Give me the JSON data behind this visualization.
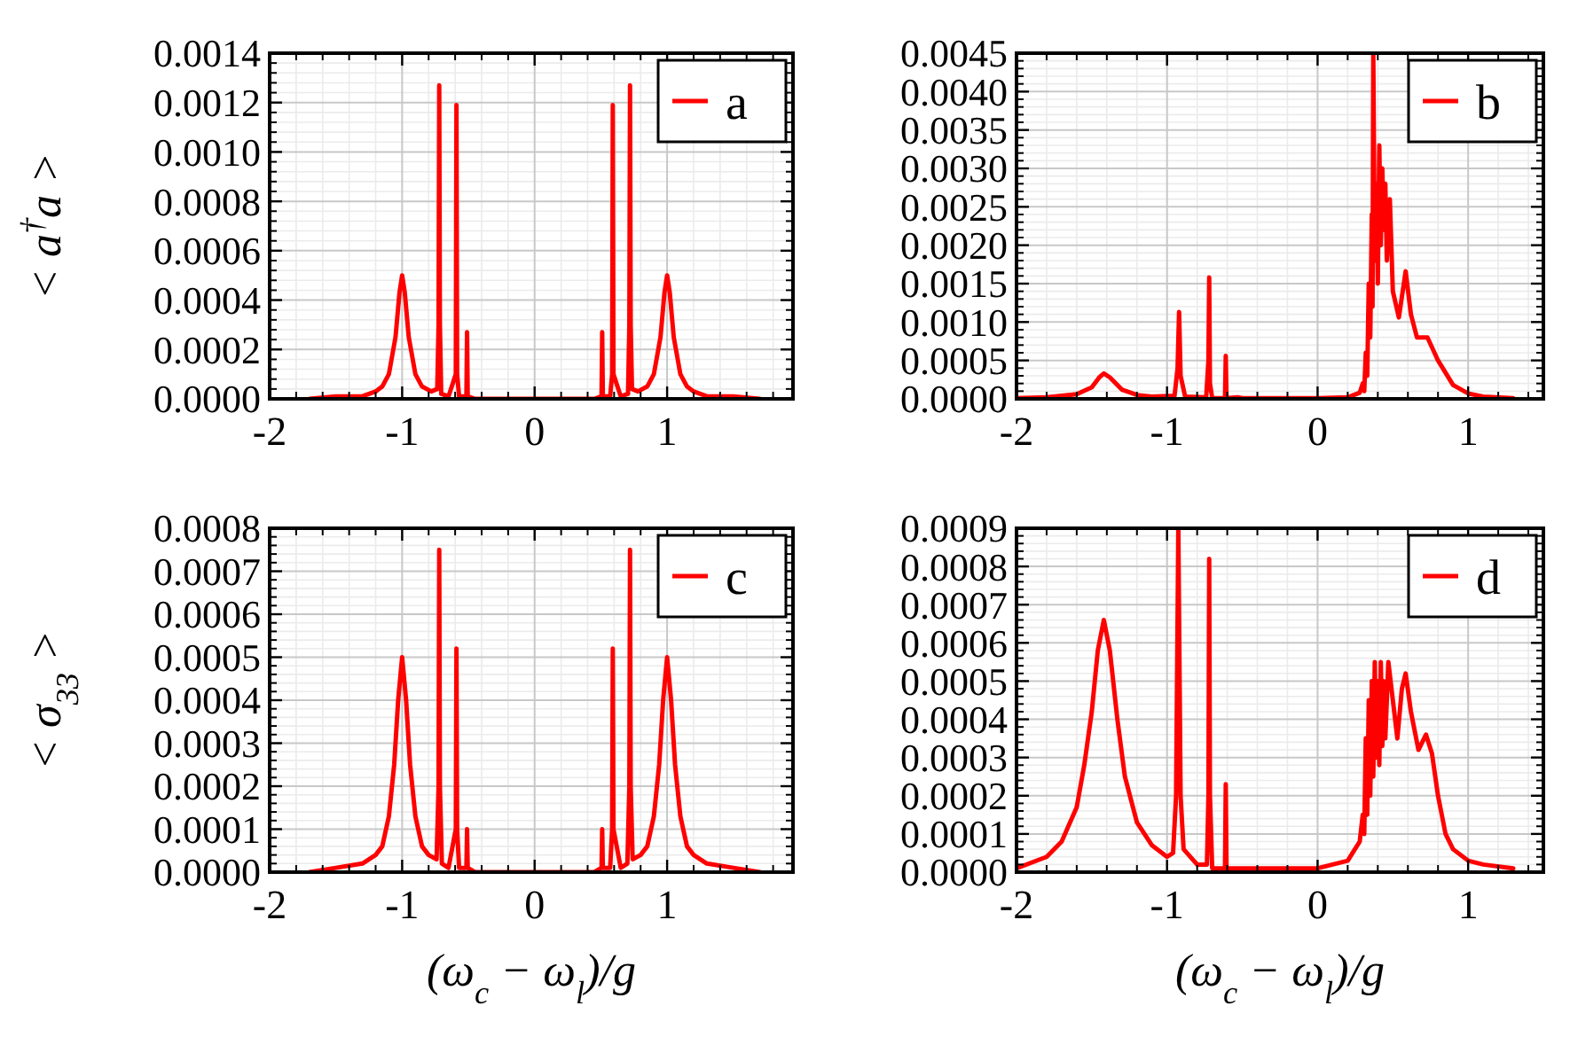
{
  "chart_data": [
    {
      "type": "line",
      "ylabel": "< a$^{†}$a >",
      "xlim": [
        -2,
        1.95
      ],
      "xticks": [
        -2,
        -1,
        0,
        1
      ],
      "ylim": [
        0,
        0.0014
      ],
      "yticks": [
        {
          "value": 0,
          "label": "0.0000"
        },
        {
          "value": 0.0002,
          "label": "0.0002"
        },
        {
          "value": 0.0004,
          "label": "0.0004"
        },
        {
          "value": 0.0006,
          "label": "0.0006"
        },
        {
          "value": 0.0008,
          "label": "0.0008"
        },
        {
          "value": 0.001,
          "label": "0.0010"
        },
        {
          "value": 0.0012,
          "label": "0.0012"
        },
        {
          "value": 0.0014,
          "label": "0.0014"
        }
      ],
      "grid": true,
      "legend": "top right",
      "series": [
        {
          "name": "a",
          "color": "#ff0000",
          "x": [
            -1.7,
            -1.5,
            -1.3,
            -1.2,
            -1.15,
            -1.1,
            -1.05,
            -1.02,
            -1,
            -0.98,
            -0.95,
            -0.9,
            -0.85,
            -0.78,
            -0.735,
            -0.725,
            -0.72,
            -0.715,
            -0.705,
            -0.65,
            -0.595,
            -0.59,
            -0.585,
            -0.57,
            -0.515,
            -0.51,
            -0.505,
            -0.45,
            0.45,
            0.505,
            0.51,
            0.515,
            0.57,
            0.585,
            0.59,
            0.595,
            0.65,
            0.705,
            0.715,
            0.72,
            0.725,
            0.735,
            0.78,
            0.85,
            0.9,
            0.95,
            0.98,
            1,
            1.02,
            1.05,
            1.1,
            1.15,
            1.2,
            1.3,
            1.5,
            1.7
          ],
          "values": [
            0,
            1e-05,
            1e-05,
            3e-05,
            5e-05,
            0.0001,
            0.00025,
            0.00043,
            0.0005,
            0.00043,
            0.00025,
            0.0001,
            5e-05,
            3e-05,
            4e-05,
            0.0003,
            0.00127,
            0.0003,
            2e-05,
            1e-05,
            0.0001,
            0.00119,
            0.0001,
            1e-05,
            1e-05,
            0.00027,
            1e-05,
            0,
            0,
            1e-05,
            0.00027,
            1e-05,
            1e-05,
            0.0001,
            0.00119,
            0.0001,
            1e-05,
            2e-05,
            0.0003,
            0.00127,
            0.0003,
            4e-05,
            3e-05,
            5e-05,
            0.0001,
            0.00025,
            0.00043,
            0.0005,
            0.00043,
            0.00025,
            0.0001,
            5e-05,
            3e-05,
            1e-05,
            1e-05,
            0
          ]
        }
      ]
    },
    {
      "type": "line",
      "xlim": [
        -2,
        1.5
      ],
      "xticks": [
        -2,
        -1,
        0,
        1
      ],
      "ylim": [
        0,
        0.0045
      ],
      "yticks": [
        {
          "value": 0,
          "label": "0.0000"
        },
        {
          "value": 0.0005,
          "label": "0.0005"
        },
        {
          "value": 0.001,
          "label": "0.0010"
        },
        {
          "value": 0.0015,
          "label": "0.0015"
        },
        {
          "value": 0.002,
          "label": "0.0020"
        },
        {
          "value": 0.0025,
          "label": "0.0025"
        },
        {
          "value": 0.003,
          "label": "0.0030"
        },
        {
          "value": 0.0035,
          "label": "0.0035"
        },
        {
          "value": 0.004,
          "label": "0.0040"
        },
        {
          "value": 0.0045,
          "label": "0.0045"
        }
      ],
      "grid": true,
      "legend": "top right",
      "series": [
        {
          "name": "b",
          "color": "#ff0000",
          "x": [
            -2,
            -1.8,
            -1.6,
            -1.5,
            -1.45,
            -1.42,
            -1.38,
            -1.3,
            -1.2,
            -1.1,
            -0.95,
            -0.93,
            -0.92,
            -0.91,
            -0.88,
            -0.74,
            -0.725,
            -0.72,
            -0.715,
            -0.7,
            -0.615,
            -0.61,
            -0.605,
            -0.53,
            -0.5,
            0,
            0.2,
            0.28,
            0.3,
            0.31,
            0.32,
            0.33,
            0.34,
            0.35,
            0.36,
            0.365,
            0.37,
            0.38,
            0.39,
            0.4,
            0.41,
            0.42,
            0.43,
            0.44,
            0.45,
            0.46,
            0.48,
            0.5,
            0.54,
            0.585,
            0.62,
            0.66,
            0.73,
            0.8,
            0.9,
            1,
            1.1,
            1.3
          ],
          "values": [
            1e-05,
            2e-05,
            6e-05,
            0.00015,
            0.00028,
            0.00033,
            0.00028,
            0.00012,
            5e-05,
            3e-05,
            4e-05,
            0.0004,
            0.00113,
            0.0003,
            3e-05,
            2e-05,
            0.0005,
            0.00158,
            0.0002,
            1e-05,
            1e-05,
            0.00056,
            1e-05,
            2e-05,
            1e-05,
            1e-05,
            2e-05,
            8e-05,
            0.0002,
            0.0001,
            0.0006,
            0.0003,
            0.0015,
            0.0008,
            0.0024,
            0.0012,
            0.0045,
            0.0018,
            0.0028,
            0.0015,
            0.0033,
            0.002,
            0.003,
            0.0022,
            0.0028,
            0.0018,
            0.0026,
            0.0014,
            0.00106,
            0.00166,
            0.0011,
            0.0008,
            0.0008,
            0.0005,
            0.00018,
            7e-05,
            3e-05,
            1e-05
          ]
        }
      ]
    },
    {
      "type": "line",
      "ylabel": "< σ$_{33}$ >",
      "xlabel": "(ω$_{c}$ − ω$_{l}$)/g",
      "xlim": [
        -2,
        1.95
      ],
      "xticks": [
        -2,
        -1,
        0,
        1
      ],
      "ylim": [
        0,
        0.0008
      ],
      "yticks": [
        {
          "value": 0,
          "label": "0.0000"
        },
        {
          "value": 0.0001,
          "label": "0.0001"
        },
        {
          "value": 0.0002,
          "label": "0.0002"
        },
        {
          "value": 0.0003,
          "label": "0.0003"
        },
        {
          "value": 0.0004,
          "label": "0.0004"
        },
        {
          "value": 0.0005,
          "label": "0.0005"
        },
        {
          "value": 0.0006,
          "label": "0.0006"
        },
        {
          "value": 0.0007,
          "label": "0.0007"
        },
        {
          "value": 0.0008,
          "label": "0.0008"
        }
      ],
      "grid": true,
      "legend": "top right",
      "series": [
        {
          "name": "c",
          "color": "#ff0000",
          "x": [
            -1.7,
            -1.5,
            -1.3,
            -1.2,
            -1.15,
            -1.1,
            -1.06,
            -1.03,
            -1,
            -0.97,
            -0.94,
            -0.9,
            -0.85,
            -0.8,
            -0.74,
            -0.725,
            -0.72,
            -0.715,
            -0.7,
            -0.65,
            -0.595,
            -0.59,
            -0.585,
            -0.57,
            -0.515,
            -0.51,
            -0.505,
            -0.45,
            0.45,
            0.505,
            0.51,
            0.515,
            0.57,
            0.585,
            0.59,
            0.595,
            0.65,
            0.7,
            0.715,
            0.72,
            0.725,
            0.74,
            0.8,
            0.85,
            0.9,
            0.94,
            0.97,
            1,
            1.03,
            1.06,
            1.1,
            1.15,
            1.2,
            1.3,
            1.5,
            1.7
          ],
          "values": [
            0,
            1e-05,
            2e-05,
            4e-05,
            6e-05,
            0.00013,
            0.00025,
            0.0004,
            0.0005,
            0.0004,
            0.00025,
            0.00013,
            6e-05,
            4e-05,
            3e-05,
            0.0002,
            0.00075,
            0.0002,
            2e-05,
            1e-05,
            0.0001,
            0.00052,
            0.0001,
            1e-05,
            1e-05,
            0.0001,
            1e-05,
            0,
            0,
            1e-05,
            0.0001,
            1e-05,
            1e-05,
            0.0001,
            0.00052,
            0.0001,
            1e-05,
            2e-05,
            0.0002,
            0.00075,
            0.0002,
            3e-05,
            4e-05,
            6e-05,
            0.00013,
            0.00025,
            0.0004,
            0.0005,
            0.0004,
            0.00025,
            0.00013,
            6e-05,
            4e-05,
            2e-05,
            1e-05,
            0
          ]
        }
      ]
    },
    {
      "type": "line",
      "xlabel": "(ω$_{c}$ − ω$_{l}$)/g",
      "xlim": [
        -2,
        1.5
      ],
      "xticks": [
        -2,
        -1,
        0,
        1
      ],
      "ylim": [
        0,
        0.0009
      ],
      "yticks": [
        {
          "value": 0,
          "label": "0.0000"
        },
        {
          "value": 0.0001,
          "label": "0.0001"
        },
        {
          "value": 0.0002,
          "label": "0.0002"
        },
        {
          "value": 0.0003,
          "label": "0.0003"
        },
        {
          "value": 0.0004,
          "label": "0.0004"
        },
        {
          "value": 0.0005,
          "label": "0.0005"
        },
        {
          "value": 0.0006,
          "label": "0.0006"
        },
        {
          "value": 0.0007,
          "label": "0.0007"
        },
        {
          "value": 0.0008,
          "label": "0.0008"
        },
        {
          "value": 0.0009,
          "label": "0.0009"
        }
      ],
      "grid": true,
      "legend": "top right",
      "series": [
        {
          "name": "d",
          "color": "#ff0000",
          "x": [
            -2,
            -1.8,
            -1.7,
            -1.6,
            -1.55,
            -1.5,
            -1.46,
            -1.42,
            -1.38,
            -1.33,
            -1.28,
            -1.2,
            -1.1,
            -1,
            -0.96,
            -0.94,
            -0.925,
            -0.91,
            -0.89,
            -0.8,
            -0.735,
            -0.725,
            -0.72,
            -0.715,
            -0.7,
            -0.615,
            -0.61,
            -0.605,
            -0.53,
            -0.3,
            0,
            0.2,
            0.28,
            0.3,
            0.31,
            0.32,
            0.33,
            0.34,
            0.35,
            0.36,
            0.37,
            0.38,
            0.39,
            0.4,
            0.41,
            0.42,
            0.43,
            0.44,
            0.45,
            0.47,
            0.5,
            0.53,
            0.56,
            0.585,
            0.62,
            0.67,
            0.72,
            0.76,
            0.8,
            0.85,
            0.9,
            1,
            1.1,
            1.3
          ],
          "values": [
            1e-05,
            4e-05,
            8e-05,
            0.00017,
            0.00028,
            0.00042,
            0.00058,
            0.00066,
            0.00058,
            0.0004,
            0.00025,
            0.00013,
            7e-05,
            4e-05,
            5e-05,
            0.0002,
            0.0009,
            0.0002,
            6e-05,
            2e-05,
            2e-05,
            0.0002,
            0.00082,
            0.0002,
            1e-05,
            1e-05,
            0.00023,
            1e-05,
            1e-05,
            1e-05,
            1e-05,
            3e-05,
            8e-05,
            0.00015,
            0.0001,
            0.00035,
            0.00015,
            0.00045,
            0.0002,
            0.0005,
            0.00025,
            0.00055,
            0.0003,
            0.0005,
            0.00028,
            0.00055,
            0.00033,
            0.0005,
            0.00035,
            0.00055,
            0.00045,
            0.00035,
            0.00048,
            0.00052,
            0.00042,
            0.00032,
            0.00036,
            0.00031,
            0.0002,
            0.0001,
            6e-05,
            3e-05,
            2e-05,
            1e-05
          ]
        }
      ]
    }
  ]
}
